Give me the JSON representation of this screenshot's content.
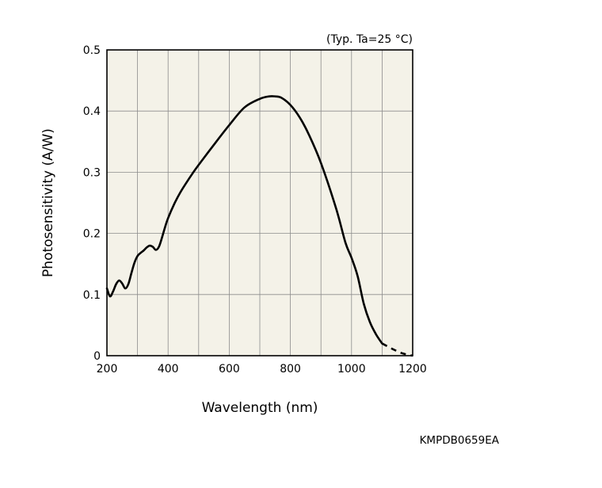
{
  "chart_data": {
    "type": "line",
    "title": "",
    "condition_note": "(Typ. Ta=25 °C)",
    "xlabel": "Wavelength (nm)",
    "ylabel": "Photosensitivity (A/W)",
    "xlim": [
      200,
      1200
    ],
    "ylim": [
      0,
      0.5
    ],
    "x_ticks": [
      200,
      400,
      600,
      800,
      1000,
      1200
    ],
    "x_tick_labels": [
      "200",
      "400",
      "600",
      "800",
      "1000",
      "1200"
    ],
    "y_ticks": [
      0,
      0.1,
      0.2,
      0.3,
      0.4,
      0.5
    ],
    "y_tick_labels": [
      "0",
      "0.1",
      "0.2",
      "0.3",
      "0.4",
      "0.5"
    ],
    "x_grid_step": 100,
    "grid": true,
    "plot_background": "#f4f2e8",
    "grid_color": "#8c8c8c",
    "line_color": "#000000",
    "series": [
      {
        "style": "solid",
        "x": [
          200,
          210,
          220,
          230,
          240,
          250,
          260,
          270,
          280,
          290,
          300,
          310,
          320,
          330,
          340,
          350,
          360,
          370,
          380,
          390,
          400,
          420,
          440,
          460,
          480,
          500,
          550,
          600,
          650,
          700,
          730,
          750,
          770,
          800,
          830,
          860,
          900,
          950,
          980,
          1000,
          1020,
          1040,
          1060,
          1080,
          1100
        ],
        "y": [
          0.11,
          0.097,
          0.105,
          0.117,
          0.123,
          0.118,
          0.11,
          0.117,
          0.135,
          0.152,
          0.163,
          0.168,
          0.172,
          0.177,
          0.18,
          0.178,
          0.173,
          0.178,
          0.193,
          0.21,
          0.225,
          0.248,
          0.267,
          0.283,
          0.298,
          0.312,
          0.345,
          0.377,
          0.406,
          0.42,
          0.424,
          0.424,
          0.422,
          0.41,
          0.39,
          0.362,
          0.315,
          0.24,
          0.185,
          0.16,
          0.13,
          0.085,
          0.055,
          0.035,
          0.02
        ]
      },
      {
        "style": "dashed",
        "x": [
          1100,
          1130,
          1160,
          1180,
          1200
        ],
        "y": [
          0.02,
          0.012,
          0.005,
          0.002,
          0.0
        ]
      }
    ]
  },
  "figure_code": "KMPDB0659EA"
}
